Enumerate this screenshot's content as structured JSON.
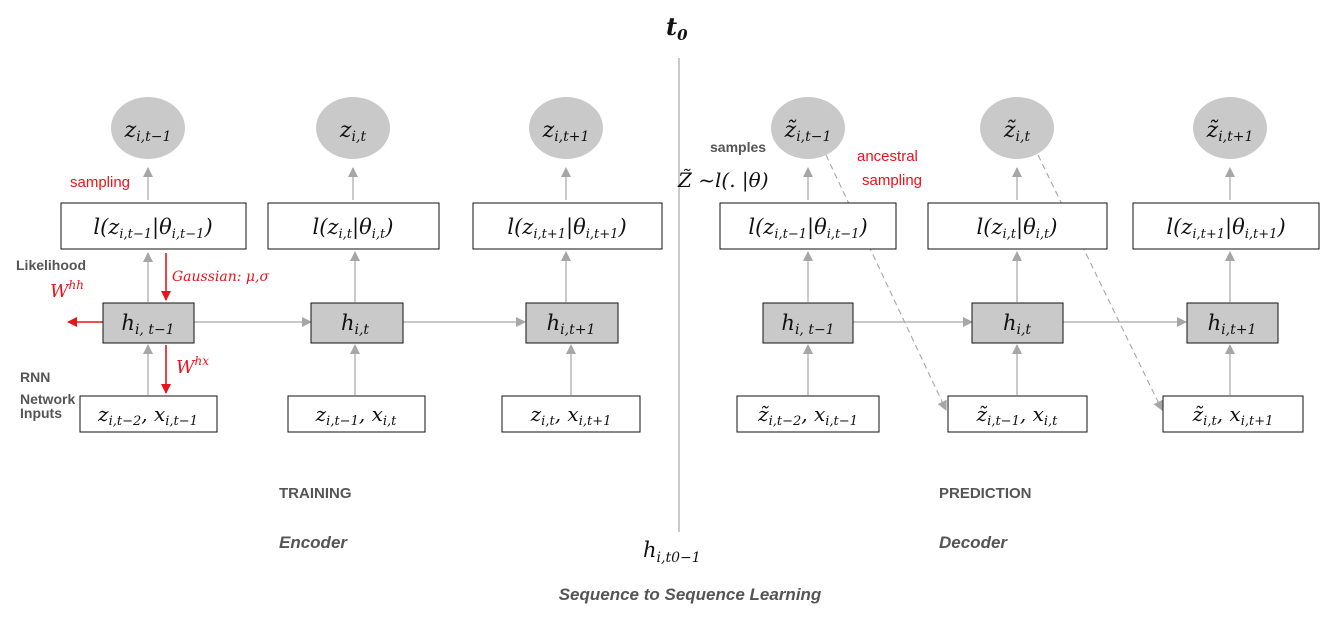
{
  "colors": {
    "red": "#e8141b",
    "arrow": "#a6a6a6",
    "node_fill": "#c9c9c9",
    "text_grey": "#555555"
  },
  "header": {
    "t0": "t",
    "t0_sub": "0"
  },
  "footer": {
    "title": "Sequence to Sequence Learning",
    "h_t0_main": "h",
    "h_t0_sub": "i,t0−1"
  },
  "training": {
    "section": "TRAINING",
    "role": "Encoder",
    "outputs": [
      {
        "main": "z",
        "sub": "i,t−1"
      },
      {
        "main": "z",
        "sub": "i,t"
      },
      {
        "main": "z",
        "sub": "i,t+1"
      }
    ],
    "likelihoods": [
      {
        "pre": "l(z",
        "s1": "i,t−1",
        "mid": "|θ",
        "s2": "i,t−1",
        "post": ")"
      },
      {
        "pre": "l(z",
        "s1": "i,t",
        "mid": "|θ",
        "s2": "i,t",
        "post": ")"
      },
      {
        "pre": "l(z",
        "s1": "i,t+1",
        "mid": "|θ",
        "s2": "i,t+1",
        "post": ")"
      }
    ],
    "hidden": [
      {
        "main": "h",
        "sub": "i, t−1"
      },
      {
        "main": "h",
        "sub": "i,t"
      },
      {
        "main": "h",
        "sub": "i,t+1"
      }
    ],
    "inputs": [
      {
        "a": "z",
        "as": "i,t−2",
        "b": "x",
        "bs": "i,t−1"
      },
      {
        "a": "z",
        "as": "i,t−1",
        "b": "x",
        "bs": "i,t"
      },
      {
        "a": "z",
        "as": "i,t",
        "b": "x",
        "bs": "i,t+1"
      }
    ],
    "annotations": {
      "sampling": "sampling",
      "likelihood": "Likelihood",
      "whh_main": "W",
      "whh_sup": "hh",
      "gaussian": "Gaussian: μ,σ",
      "whx_main": "W",
      "whx_sup": "hx",
      "rnn": "RNN",
      "network": "Network",
      "inputs": "Inputs"
    }
  },
  "prediction": {
    "section": "PREDICTION",
    "role": "Decoder",
    "outputs": [
      {
        "main": "z̃",
        "sub": "i,t−1"
      },
      {
        "main": "z̃",
        "sub": "i,t"
      },
      {
        "main": "z̃",
        "sub": "i,t+1"
      }
    ],
    "likelihoods": [
      {
        "pre": "l(z",
        "s1": "i,t−1",
        "mid": "|θ",
        "s2": "i,t−1",
        "post": ")"
      },
      {
        "pre": "l(z",
        "s1": "i,t",
        "mid": "|θ",
        "s2": "i,t",
        "post": ")"
      },
      {
        "pre": "l(z",
        "s1": "i,t+1",
        "mid": "|θ",
        "s2": "i,t+1",
        "post": ")"
      }
    ],
    "hidden": [
      {
        "main": "h",
        "sub": "i, t−1"
      },
      {
        "main": "h",
        "sub": "i,t"
      },
      {
        "main": "h",
        "sub": "i,t+1"
      }
    ],
    "inputs": [
      {
        "a": "z̃",
        "as": "i,t−2",
        "b": "x",
        "bs": "i,t−1"
      },
      {
        "a": "z̃",
        "as": "i,t−1",
        "b": "x",
        "bs": "i,t"
      },
      {
        "a": "z̃",
        "as": "i,t",
        "b": "x",
        "bs": "i,t+1"
      }
    ],
    "annotations": {
      "samples": "samples",
      "formula": "Z̃ ~l(. |θ)",
      "ancestral": "ancestral",
      "sampling": "sampling"
    }
  }
}
